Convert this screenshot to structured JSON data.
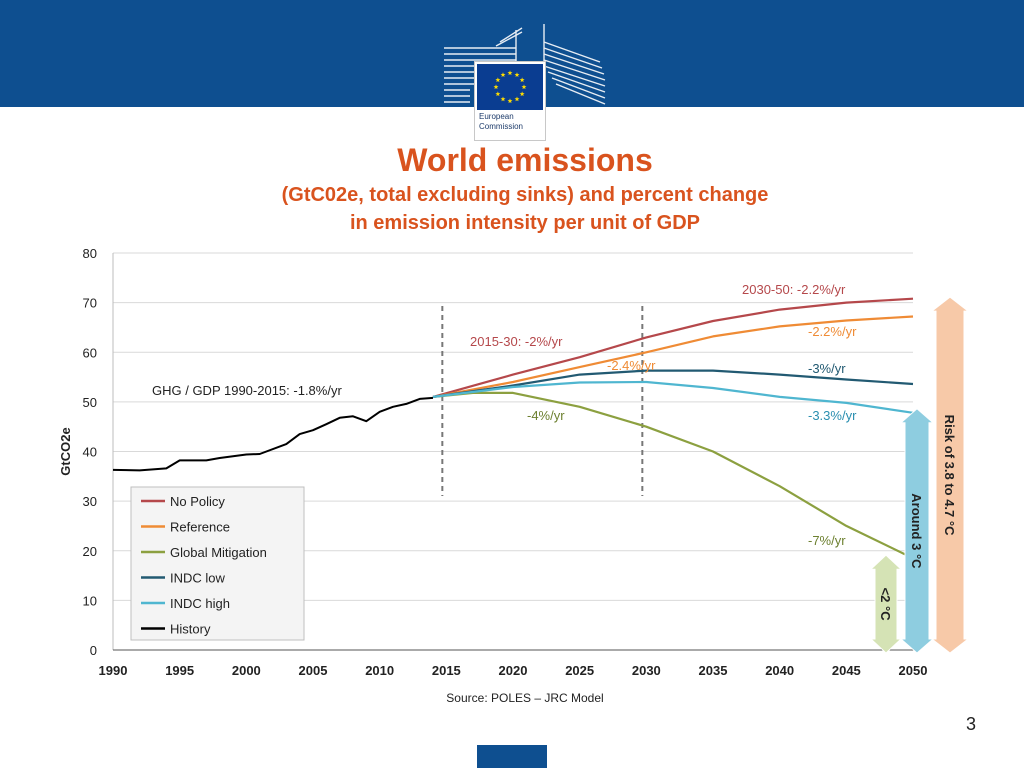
{
  "header": {
    "logo_line1": "European",
    "logo_line2": "Commission"
  },
  "title": "World emissions",
  "subtitle_line1": "(GtC02e, total excluding sinks) and percent change",
  "subtitle_line2": "in emission intensity per unit of GDP",
  "source": "Source: POLES – JRC Model",
  "page_number": "3",
  "colors": {
    "brand_blue": "#0e4f90",
    "title_orange": "#d9531e"
  },
  "chart_data": {
    "type": "line",
    "ylabel": "GtCO2e",
    "xlabel": "",
    "ylim": [
      0,
      80
    ],
    "xlim": [
      1990,
      2050
    ],
    "y_ticks": [
      0,
      10,
      20,
      30,
      40,
      50,
      60,
      70,
      80
    ],
    "x_ticks": [
      1990,
      1995,
      2000,
      2005,
      2010,
      2015,
      2020,
      2025,
      2030,
      2035,
      2040,
      2045,
      2050
    ],
    "grid": true,
    "legend_position": "bottom-left",
    "series": [
      {
        "name": "No Policy",
        "color": "#b5484b",
        "x": [
          2014,
          2020,
          2025,
          2030,
          2035,
          2040,
          2045,
          2050
        ],
        "values": [
          51,
          55.5,
          59,
          63,
          66.3,
          68.6,
          70,
          70.8
        ]
      },
      {
        "name": "Reference",
        "color": "#ef8b35",
        "x": [
          2014,
          2020,
          2025,
          2030,
          2035,
          2040,
          2045,
          2050
        ],
        "values": [
          51,
          54,
          57,
          60,
          63.2,
          65.2,
          66.4,
          67.2
        ]
      },
      {
        "name": "Global Mitigation",
        "color": "#8ca040",
        "x": [
          2014,
          2017,
          2020,
          2025,
          2030,
          2035,
          2040,
          2045,
          2050
        ],
        "values": [
          51,
          51.8,
          51.8,
          49,
          45,
          40,
          33,
          25,
          18.5
        ]
      },
      {
        "name": "INDC low",
        "color": "#225a72",
        "x": [
          2014,
          2020,
          2025,
          2030,
          2035,
          2040,
          2045,
          2050
        ],
        "values": [
          51,
          53.3,
          55.5,
          56.3,
          56.3,
          55.5,
          54.5,
          53.6
        ]
      },
      {
        "name": "INDC high",
        "color": "#4fb6d0",
        "x": [
          2014,
          2020,
          2025,
          2030,
          2035,
          2040,
          2045,
          2050
        ],
        "values": [
          51,
          53,
          53.9,
          54,
          52.8,
          51,
          49.8,
          47.8
        ]
      },
      {
        "name": "History",
        "color": "#000000",
        "x": [
          1990,
          1992,
          1994,
          1995,
          1997,
          1998,
          2000,
          2001,
          2003,
          2004,
          2005,
          2006,
          2007,
          2008,
          2009,
          2010,
          2011,
          2012,
          2013,
          2014
        ],
        "values": [
          36.3,
          36.2,
          36.6,
          38.2,
          38.2,
          38.7,
          39.4,
          39.5,
          41.5,
          43.5,
          44.3,
          45.5,
          46.8,
          47.1,
          46.1,
          48,
          49,
          49.6,
          50.6,
          50.8
        ]
      }
    ],
    "vertical_markers": [
      2015,
      2030
    ],
    "annotations": [
      {
        "text": "GHG / GDP  1990-2015: -1.8%/yr",
        "color": "#222222"
      },
      {
        "text": "2015-30: -2%/yr",
        "color": "#b5484b"
      },
      {
        "text": "2030-50: -2.2%/yr",
        "color": "#b5484b"
      },
      {
        "text": "-2.2%/yr",
        "color": "#ef8b35"
      },
      {
        "text": "-2.4%/yr",
        "color": "#ef8b35"
      },
      {
        "text": "-3%/yr",
        "color": "#225a72"
      },
      {
        "text": "-3.3%/yr",
        "color": "#2a8fb0"
      },
      {
        "text": "-4%/yr",
        "color": "#6d8030"
      },
      {
        "text": "-7%/yr",
        "color": "#6d8030"
      }
    ],
    "range_arrows": [
      {
        "label": "Risk of 3.8 to 4.7 °C",
        "from": 0,
        "to": 70.5,
        "color": "#f7c9a8"
      },
      {
        "label": "Around 3 °C",
        "from": 0,
        "to": 48,
        "color": "#8ecde0"
      },
      {
        "label": "<2 °C",
        "from": 0,
        "to": 18.5,
        "color": "#d5e3b5"
      }
    ]
  }
}
